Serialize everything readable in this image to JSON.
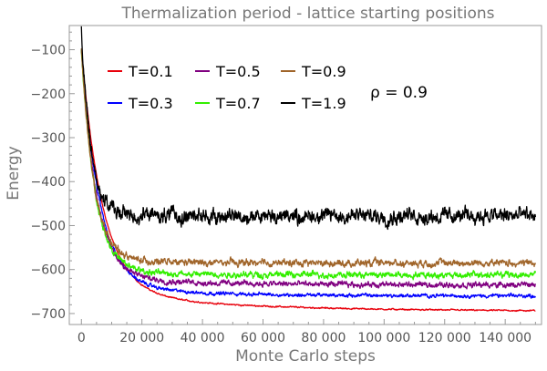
{
  "chart_data": {
    "type": "line",
    "title": "Thermalization period - lattice starting positions",
    "xlabel": "Monte Carlo steps",
    "ylabel": "Energy",
    "xlim": [
      -4000,
      152000
    ],
    "ylim": [
      -725,
      -45
    ],
    "xticks": [
      0,
      20000,
      40000,
      60000,
      80000,
      100000,
      120000,
      140000
    ],
    "xtick_labels": [
      "0",
      "20 000",
      "40 000",
      "60 000",
      "80 000",
      "100 000",
      "120 000",
      "140 000"
    ],
    "yticks": [
      -100,
      -200,
      -300,
      -400,
      -500,
      -600,
      -700
    ],
    "ytick_labels": [
      "−100",
      "−200",
      "−300",
      "−400",
      "−500",
      "−600",
      "−700"
    ],
    "legend_position": "top-left",
    "annotation": "ρ = 0.9",
    "grid": false,
    "series": [
      {
        "name": "T=0.1",
        "color": "#e8000b",
        "start": -100,
        "plateau": -695,
        "tau": 7000,
        "tau2": 45000,
        "tail_amp": 45,
        "noise": 2
      },
      {
        "name": "T=0.3",
        "color": "#0000ff",
        "start": -100,
        "plateau": -660,
        "tau": 6000,
        "tau2": 30000,
        "tail_amp": 25,
        "noise": 5
      },
      {
        "name": "T=0.5",
        "color": "#800080",
        "start": -100,
        "plateau": -635,
        "tau": 5000,
        "tau2": 30000,
        "tail_amp": 20,
        "noise": 8
      },
      {
        "name": "T=0.7",
        "color": "#33ee00",
        "start": -100,
        "plateau": -612,
        "tau": 4500,
        "tau2": 20000,
        "tail_amp": 10,
        "noise": 9
      },
      {
        "name": "T=0.9",
        "color": "#a0652a",
        "start": -100,
        "plateau": -585,
        "tau": 4200,
        "tau2": 20000,
        "tail_amp": 5,
        "noise": 10
      },
      {
        "name": "T=1.9",
        "color": "#000000",
        "start": -60,
        "plateau": -478,
        "tau": 3200,
        "tau2": 10000,
        "tail_amp": 0,
        "noise": 22
      }
    ]
  }
}
